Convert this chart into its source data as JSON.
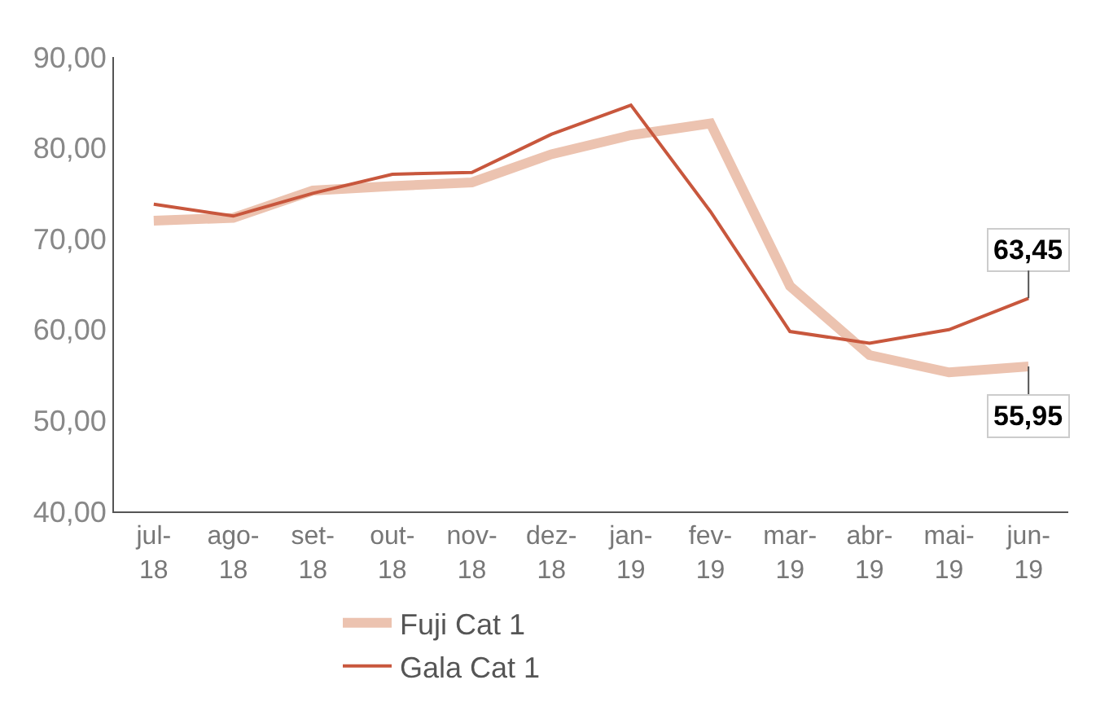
{
  "chart_data": {
    "type": "line",
    "categories": [
      "jul-\n18",
      "ago-\n18",
      "set-\n18",
      "out-\n18",
      "nov-\n18",
      "dez-\n18",
      "jan-\n19",
      "fev-\n19",
      "mar-\n19",
      "abr-\n19",
      "mai-\n19",
      "jun-\n19"
    ],
    "series": [
      {
        "name": "Fuji Cat 1",
        "color": "#ecc3b0",
        "values": [
          72.0,
          72.3,
          75.3,
          75.8,
          76.2,
          79.3,
          81.4,
          82.7,
          64.8,
          57.2,
          55.3,
          55.95
        ],
        "value_labels": [
          null,
          null,
          null,
          null,
          null,
          null,
          null,
          null,
          null,
          null,
          null,
          "55,95"
        ]
      },
      {
        "name": "Gala Cat 1",
        "color": "#c8573d",
        "values": [
          73.8,
          72.5,
          75.0,
          77.1,
          77.3,
          81.5,
          84.7,
          73.0,
          59.8,
          58.5,
          60.0,
          63.45
        ],
        "value_labels": [
          null,
          null,
          null,
          null,
          null,
          null,
          null,
          null,
          null,
          null,
          null,
          "63,45"
        ]
      }
    ],
    "ylim": [
      40,
      90
    ],
    "yticks": [
      {
        "value": 40,
        "label": "40,00"
      },
      {
        "value": 50,
        "label": "50,00"
      },
      {
        "value": 60,
        "label": "60,00"
      },
      {
        "value": 70,
        "label": "70,00"
      },
      {
        "value": 80,
        "label": "80,00"
      },
      {
        "value": 90,
        "label": "90,00"
      }
    ],
    "legend": "bottom",
    "marker": "none",
    "line_style": "solid"
  }
}
